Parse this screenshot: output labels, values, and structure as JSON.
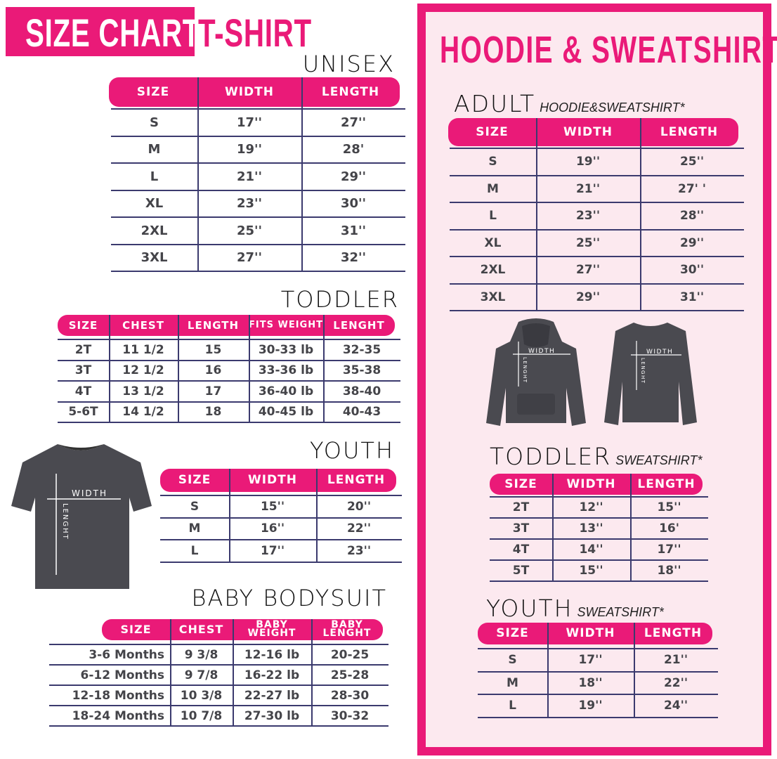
{
  "header": {
    "brand": "SIZE CHART",
    "product": "T-SHIRT"
  },
  "colors": {
    "accent": "#ea1a78",
    "panel_bg": "#fce9ef",
    "rule": "#3b3a6e",
    "garment": "#4a4a50"
  },
  "tshirt": {
    "unisex": {
      "title": "UNISEX",
      "headers": [
        "SIZE",
        "WIDTH",
        "LENGTH"
      ],
      "rows": [
        [
          "S",
          "17''",
          "27''"
        ],
        [
          "M",
          "19''",
          "28'"
        ],
        [
          "L",
          "21''",
          "29''"
        ],
        [
          "XL",
          "23''",
          "30''"
        ],
        [
          "2XL",
          "25''",
          "31''"
        ],
        [
          "3XL",
          "27''",
          "32''"
        ]
      ]
    },
    "toddler": {
      "title": "TODDLER",
      "headers": [
        "SIZE",
        "CHEST",
        "LENGTH",
        "FITS WEIGHT",
        "LENGHT"
      ],
      "rows": [
        [
          "2T",
          "11 1/2",
          "15",
          "30-33 lb",
          "32-35"
        ],
        [
          "3T",
          "12 1/2",
          "16",
          "33-36 lb",
          "35-38"
        ],
        [
          "4T",
          "13 1/2",
          "17",
          "36-40 lb",
          "38-40"
        ],
        [
          "5-6T",
          "14 1/2",
          "18",
          "40-45 lb",
          "40-43"
        ]
      ]
    },
    "youth": {
      "title": "YOUTH",
      "headers": [
        "SIZE",
        "WIDTH",
        "LENGTH"
      ],
      "rows": [
        [
          "S",
          "15''",
          "20''"
        ],
        [
          "M",
          "16''",
          "22''"
        ],
        [
          "L",
          "17''",
          "23''"
        ]
      ]
    },
    "baby": {
      "title": "BABY BODYSUIT",
      "headers": [
        "SIZE",
        "CHEST",
        "BABY WEIGHT",
        "BABY LENGHT"
      ],
      "rows": [
        [
          "3-6 Months",
          "9 3/8",
          "12-16 lb",
          "20-25"
        ],
        [
          "6-12 Months",
          "9 7/8",
          "16-22 lb",
          "25-28"
        ],
        [
          "12-18 Months",
          "10 3/8",
          "22-27 lb",
          "28-30"
        ],
        [
          "18-24 Months",
          "10 7/8",
          "27-30 lb",
          "30-32"
        ]
      ]
    },
    "diagram": {
      "width_label": "WIDTH",
      "length_label": "LENGHT"
    }
  },
  "hoodie": {
    "title": "HOODIE & SWEATSHIRT",
    "adult": {
      "title": "ADULT",
      "subtitle": "HOODIE&SWEATSHIRT*",
      "headers": [
        "SIZE",
        "WIDTH",
        "LENGTH"
      ],
      "rows": [
        [
          "S",
          "19''",
          "25''"
        ],
        [
          "M",
          "21''",
          "27' '"
        ],
        [
          "L",
          "23''",
          "28''"
        ],
        [
          "XL",
          "25''",
          "29''"
        ],
        [
          "2XL",
          "27''",
          "30''"
        ],
        [
          "3XL",
          "29''",
          "31''"
        ]
      ]
    },
    "toddler": {
      "title": "TODDLER",
      "subtitle": "SWEATSHIRT*",
      "headers": [
        "SIZE",
        "WIDTH",
        "LENGTH"
      ],
      "rows": [
        [
          "2T",
          "12''",
          "15''"
        ],
        [
          "3T",
          "13''",
          "16'"
        ],
        [
          "4T",
          "14''",
          "17''"
        ],
        [
          "5T",
          "15''",
          "18''"
        ]
      ]
    },
    "youth": {
      "title": "YOUTH",
      "subtitle": "SWEATSHIRT*",
      "headers": [
        "SIZE",
        "WIDTH",
        "LENGTH"
      ],
      "rows": [
        [
          "S",
          "17''",
          "21''"
        ],
        [
          "M",
          "18''",
          "22''"
        ],
        [
          "L",
          "19''",
          "24''"
        ]
      ]
    },
    "diagram": {
      "width_label": "WIDTH",
      "length_label": "LENGHT"
    }
  }
}
